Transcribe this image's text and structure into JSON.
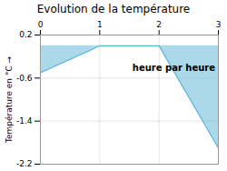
{
  "chart_data": {
    "type": "area",
    "title": "Evolution de la température",
    "ylabel": "Température en °C",
    "x": [
      0,
      1,
      2,
      3
    ],
    "values": [
      -0.5,
      0.0,
      0.0,
      -1.9
    ],
    "color": "#5ab4d6",
    "xlim": [
      0,
      3
    ],
    "xticks": [
      0,
      1,
      2,
      3
    ],
    "ylim": [
      -2.2,
      0.2
    ],
    "yticks": [
      0.2,
      -0.6,
      -1.4,
      -2.2
    ],
    "grid": true,
    "annotations": [
      {
        "text": "heure par heure",
        "x": 1.55,
        "y": -0.42
      }
    ]
  }
}
